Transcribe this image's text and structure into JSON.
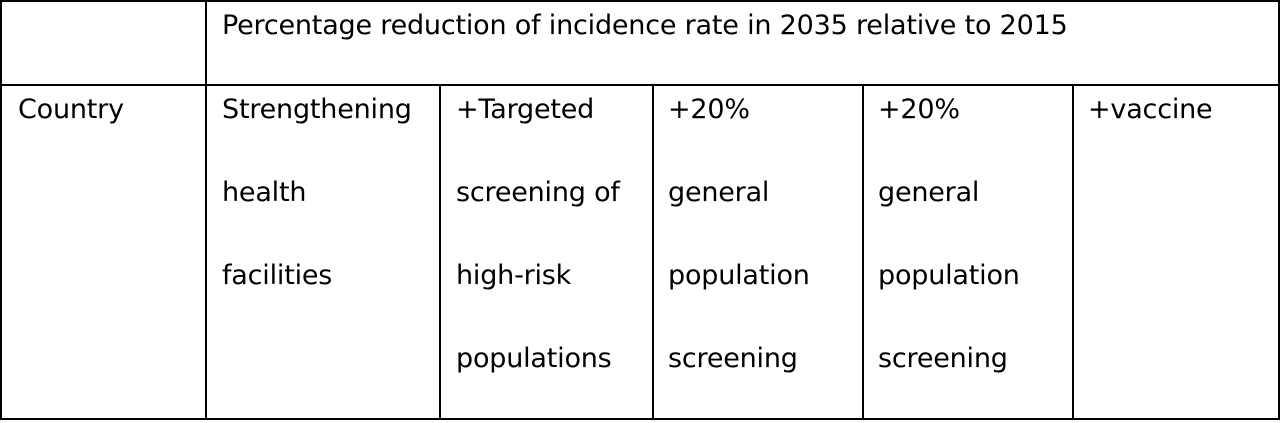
{
  "table": {
    "title": "Percentage reduction of incidence rate in 2035 relative to 2015",
    "country_header": "Country",
    "columns": [
      {
        "lines": [
          "Strengthening",
          "health",
          "facilities"
        ]
      },
      {
        "lines": [
          "+Targeted",
          "screening of",
          "high-risk",
          "populations"
        ]
      },
      {
        "lines": [
          "+20%",
          "general",
          "population",
          "screening"
        ]
      },
      {
        "lines": [
          "+20%",
          "general",
          "population",
          "screening"
        ]
      },
      {
        "lines": [
          "+vaccine"
        ]
      }
    ]
  }
}
